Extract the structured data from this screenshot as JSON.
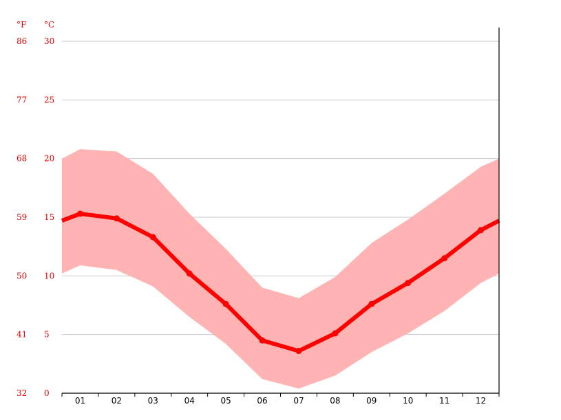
{
  "chart_data": {
    "type": "line",
    "title": "",
    "xlabel": "",
    "ylabel": "",
    "units": {
      "fahrenheit": "°F",
      "celsius": "°C"
    },
    "categories": [
      "01",
      "02",
      "03",
      "04",
      "05",
      "06",
      "07",
      "08",
      "09",
      "10",
      "11",
      "12"
    ],
    "ylim_celsius": [
      0,
      30
    ],
    "yticks_celsius": [
      "0",
      "5",
      "10",
      "15",
      "20",
      "25",
      "30"
    ],
    "yticks_fahrenheit": [
      "32",
      "41",
      "50",
      "59",
      "68",
      "77",
      "86"
    ],
    "grid": true,
    "legend": "none",
    "series": [
      {
        "values": [
          15.3,
          14.9,
          13.3,
          10.2,
          7.6,
          4.5,
          3.6,
          5.1,
          7.6,
          9.4,
          11.5,
          13.9
        ],
        "color": "#ff0000"
      }
    ],
    "band": {
      "low": [
        10.9,
        10.5,
        9.1,
        6.5,
        4.2,
        1.2,
        0.4,
        1.5,
        3.5,
        5.1,
        7.0,
        9.4
      ],
      "high": [
        20.8,
        20.6,
        18.7,
        15.3,
        12.3,
        9.0,
        8.1,
        9.9,
        12.8,
        14.8,
        17.0,
        19.3
      ],
      "color": "#ffb3b3"
    },
    "edge_values": {
      "line_start": 14.7,
      "line_end": 14.7,
      "low_start": 10.2,
      "low_end": 10.2,
      "high_start": 20.0,
      "high_end": 20.0
    }
  }
}
